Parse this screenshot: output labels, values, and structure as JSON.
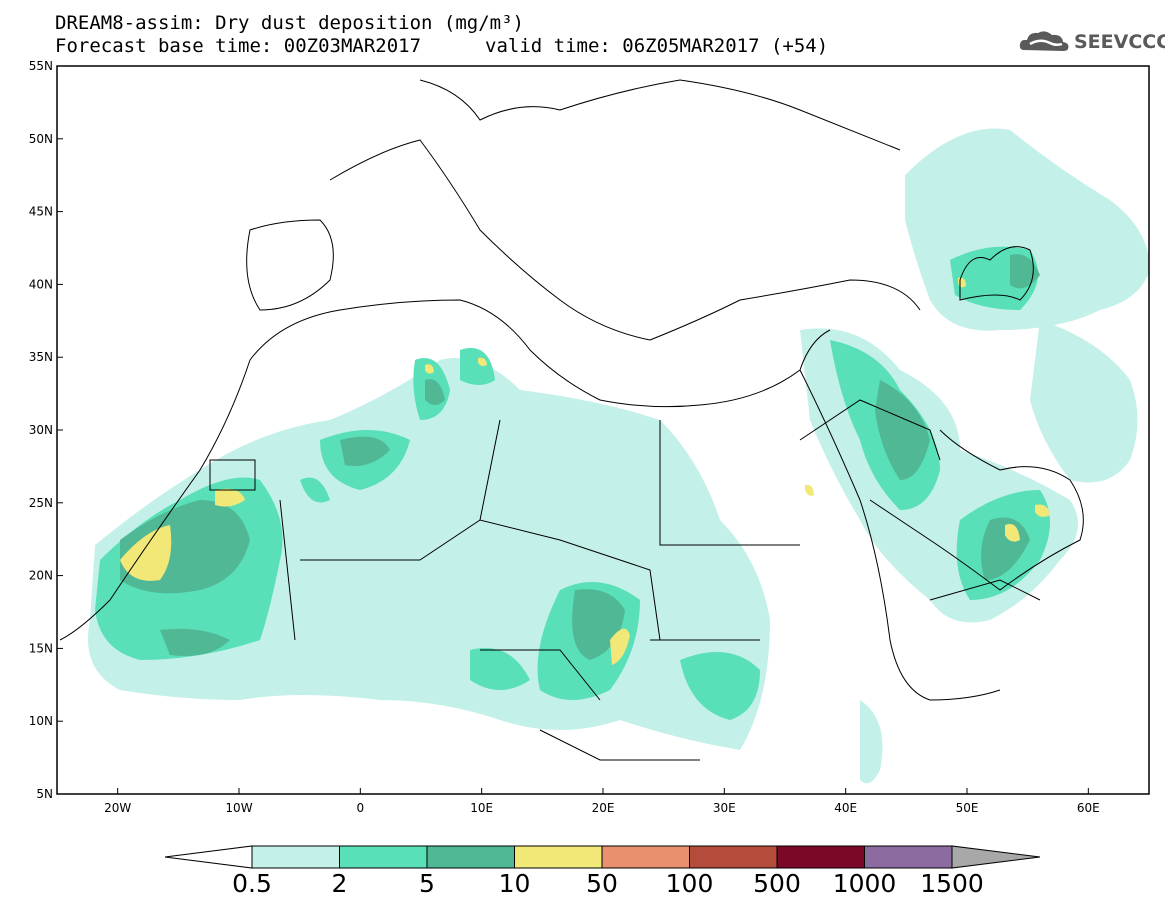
{
  "header": {
    "title": "DREAM8-assim: Dry dust deposition (mg/m³)",
    "forecast_base": "Forecast base time: 00Z03MAR2017",
    "valid_time": "valid time: 06Z05MAR2017 (+54)"
  },
  "logo": {
    "text": "SEEVCCC",
    "icon": "cloud-icon"
  },
  "map": {
    "lon_range": [
      -25,
      65
    ],
    "lat_range": [
      5,
      55
    ],
    "lat_ticks": [
      "5N",
      "10N",
      "15N",
      "20N",
      "25N",
      "30N",
      "35N",
      "40N",
      "45N",
      "50N",
      "55N"
    ],
    "lon_ticks": [
      "20W",
      "10W",
      "0",
      "10E",
      "20E",
      "30E",
      "40E",
      "50E",
      "60E"
    ]
  },
  "colorbar": {
    "labels": [
      "0.5",
      "2",
      "5",
      "10",
      "50",
      "100",
      "500",
      "1000",
      "1500"
    ],
    "colors": [
      "#c3f0e8",
      "#59e0b8",
      "#50b894",
      "#f2e878",
      "#e89070",
      "#b44c3c",
      "#7c0828",
      "#8c6ca0"
    ],
    "under_color": "#ffffff",
    "over_color": "#a8a8a8"
  }
}
